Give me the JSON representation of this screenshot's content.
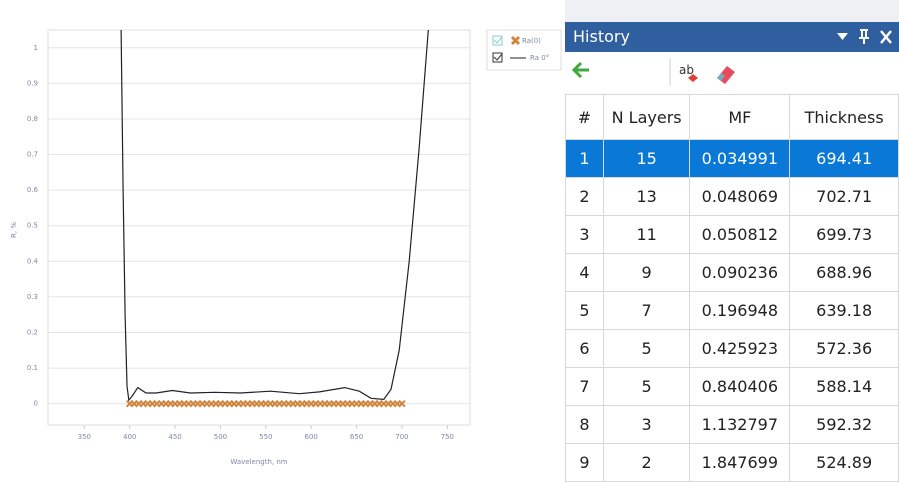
{
  "chart_data": {
    "type": "line",
    "xlabel": "Wavelength, nm",
    "ylabel": "R, %",
    "xlim": [
      310,
      775
    ],
    "ylim": [
      -0.06,
      1.05
    ],
    "xticks": [
      350,
      400,
      450,
      500,
      550,
      600,
      650,
      700,
      750
    ],
    "yticks": [
      0,
      0.1,
      0.2,
      0.3,
      0.4,
      0.5,
      0.6,
      0.7,
      0.8,
      0.9,
      1
    ],
    "grid": true,
    "series": [
      {
        "name": "Ra(0)",
        "color": "#d1843c",
        "marker": "x",
        "x": [
          400,
          405,
          410,
          415,
          420,
          425,
          430,
          435,
          440,
          445,
          450,
          455,
          460,
          465,
          470,
          475,
          480,
          485,
          490,
          495,
          500,
          505,
          510,
          515,
          520,
          525,
          530,
          535,
          540,
          545,
          550,
          555,
          560,
          565,
          570,
          575,
          580,
          585,
          590,
          595,
          600,
          605,
          610,
          615,
          620,
          625,
          630,
          635,
          640,
          645,
          650,
          655,
          660,
          665,
          670,
          675,
          680,
          685,
          690,
          695,
          700
        ],
        "values": [
          0,
          0,
          0,
          0,
          0,
          0,
          0,
          0,
          0,
          0,
          0,
          0,
          0,
          0,
          0,
          0,
          0,
          0,
          0,
          0,
          0,
          0,
          0,
          0,
          0,
          0,
          0,
          0,
          0,
          0,
          0,
          0,
          0,
          0,
          0,
          0,
          0,
          0,
          0,
          0,
          0,
          0,
          0,
          0,
          0,
          0,
          0,
          0,
          0,
          0,
          0,
          0,
          0,
          0,
          0,
          0,
          0,
          0,
          0,
          0,
          0
        ]
      },
      {
        "name": "Ra 0°",
        "color": "#222222",
        "marker": "none",
        "x": [
          390.5,
          392.7,
          395,
          397,
          399,
          402.5,
          409,
          418,
          429,
          447,
          467,
          494,
          522,
          555,
          587,
          609,
          637,
          653,
          666,
          680,
          688,
          697,
          708,
          719,
          729
        ],
        "values": [
          1.05,
          0.6,
          0.25,
          0.05,
          0.01,
          0.02,
          0.045,
          0.03,
          0.03,
          0.037,
          0.03,
          0.032,
          0.03,
          0.035,
          0.028,
          0.033,
          0.045,
          0.035,
          0.015,
          0.012,
          0.04,
          0.15,
          0.4,
          0.72,
          1.05
        ]
      }
    ]
  },
  "history": {
    "title": "History",
    "columns": [
      "#",
      "N Layers",
      "MF",
      "Thickness"
    ],
    "rows": [
      [
        "1",
        "15",
        "0.034991",
        "694.41"
      ],
      [
        "2",
        "13",
        "0.048069",
        "702.71"
      ],
      [
        "3",
        "11",
        "0.050812",
        "699.73"
      ],
      [
        "4",
        "9",
        "0.090236",
        "688.96"
      ],
      [
        "5",
        "7",
        "0.196948",
        "639.18"
      ],
      [
        "6",
        "5",
        "0.425923",
        "572.36"
      ],
      [
        "7",
        "5",
        "0.840406",
        "588.14"
      ],
      [
        "8",
        "3",
        "1.132797",
        "592.32"
      ],
      [
        "9",
        "2",
        "1.847699",
        "524.89"
      ]
    ]
  }
}
